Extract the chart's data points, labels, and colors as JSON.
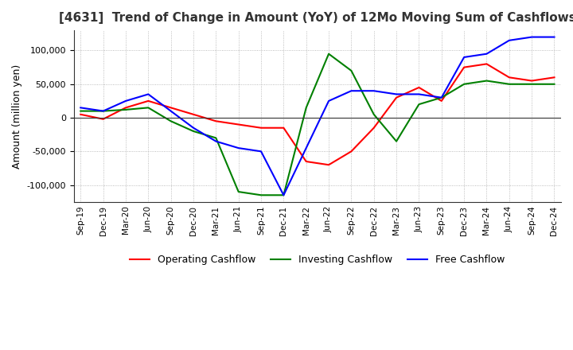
{
  "title": "[4631]  Trend of Change in Amount (YoY) of 12Mo Moving Sum of Cashflows",
  "ylabel": "Amount (million yen)",
  "x_labels": [
    "Sep-19",
    "Dec-19",
    "Mar-20",
    "Jun-20",
    "Sep-20",
    "Dec-20",
    "Mar-21",
    "Jun-21",
    "Sep-21",
    "Dec-21",
    "Mar-22",
    "Jun-22",
    "Sep-22",
    "Dec-22",
    "Mar-23",
    "Jun-23",
    "Sep-23",
    "Dec-23",
    "Mar-24",
    "Jun-24",
    "Sep-24",
    "Dec-24"
  ],
  "operating": [
    5000,
    -2000,
    15000,
    25000,
    15000,
    5000,
    -5000,
    -10000,
    -15000,
    -15000,
    -65000,
    -70000,
    -50000,
    -15000,
    30000,
    45000,
    25000,
    75000,
    80000,
    60000,
    55000,
    60000
  ],
  "investing": [
    10000,
    10000,
    12000,
    15000,
    -5000,
    -20000,
    -30000,
    -110000,
    -115000,
    -115000,
    15000,
    95000,
    70000,
    5000,
    -35000,
    20000,
    30000,
    50000,
    55000,
    50000,
    50000,
    50000
  ],
  "free": [
    15000,
    10000,
    25000,
    35000,
    10000,
    -15000,
    -35000,
    -45000,
    -50000,
    -115000,
    -45000,
    25000,
    40000,
    40000,
    35000,
    35000,
    30000,
    90000,
    95000,
    115000,
    120000,
    120000
  ],
  "ylim": [
    -125000,
    130000
  ],
  "yticks": [
    -100000,
    -50000,
    0,
    50000,
    100000
  ],
  "operating_color": "#ff0000",
  "investing_color": "#008000",
  "free_color": "#0000ff",
  "background_color": "#ffffff",
  "grid_color": "#aaaaaa",
  "title_fontsize": 11,
  "legend_labels": [
    "Operating Cashflow",
    "Investing Cashflow",
    "Free Cashflow"
  ]
}
